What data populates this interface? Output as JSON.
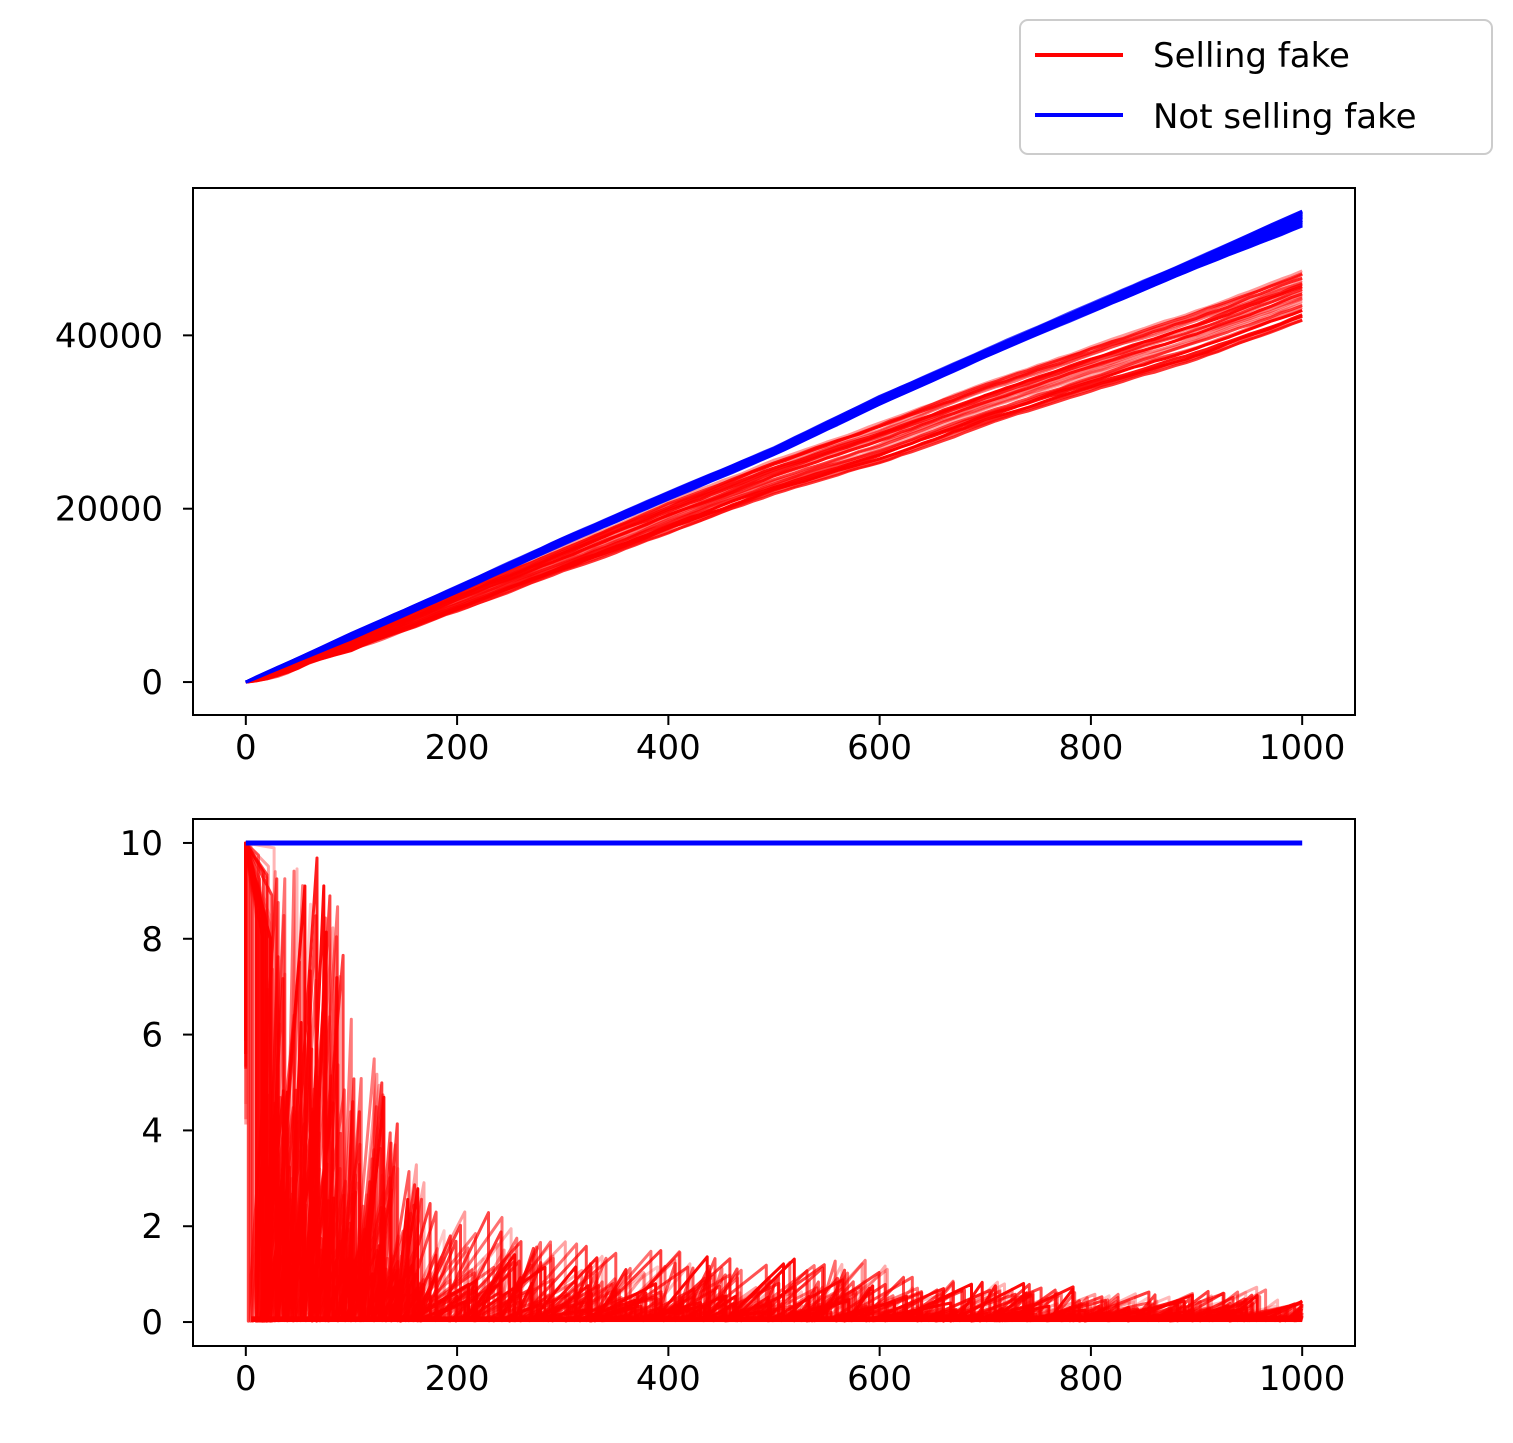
{
  "legend": {
    "entries": [
      {
        "label": "Selling fake",
        "color": "#ff0000"
      },
      {
        "label": "Not selling fake",
        "color": "#0000ff"
      }
    ],
    "placement": "top-right, outside axes"
  },
  "chart_data": [
    {
      "type": "line",
      "panel": "top",
      "title": "",
      "xlabel": "",
      "ylabel": "",
      "xlim": [
        -50,
        1050
      ],
      "ylim": [
        -3800,
        57000
      ],
      "xticks": [
        0,
        200,
        400,
        600,
        800,
        1000
      ],
      "yticks": [
        0,
        20000,
        40000
      ],
      "grid": false,
      "series": [
        {
          "name": "Not selling fake",
          "color": "#0000ff",
          "x": [
            0,
            100,
            200,
            300,
            400,
            500,
            600,
            700,
            800,
            900,
            1000
          ],
          "y_low": [
            0,
            5000,
            10400,
            15900,
            21100,
            26200,
            32000,
            37500,
            42700,
            47800,
            52600
          ],
          "y_high": [
            0,
            5600,
            11000,
            16600,
            21900,
            27000,
            32900,
            38300,
            43600,
            48900,
            54400
          ]
        },
        {
          "name": "Selling fake",
          "color": "#ff0000",
          "x": [
            0,
            100,
            200,
            300,
            400,
            500,
            600,
            700,
            800,
            900,
            1000
          ],
          "y_low": [
            0,
            3700,
            8100,
            12700,
            17200,
            21700,
            25400,
            29800,
            33600,
            37200,
            41600
          ],
          "y_high": [
            0,
            4800,
            10300,
            15400,
            20600,
            25600,
            29800,
            34400,
            38600,
            42700,
            47300
          ]
        }
      ]
    },
    {
      "type": "line",
      "panel": "bottom",
      "title": "",
      "xlabel": "",
      "ylabel": "",
      "xlim": [
        -50,
        1050
      ],
      "ylim": [
        -0.5,
        10.5
      ],
      "xticks": [
        0,
        200,
        400,
        600,
        800,
        1000
      ],
      "yticks": [
        0,
        2,
        4,
        6,
        8,
        10
      ],
      "grid": false,
      "series": [
        {
          "name": "Not selling fake",
          "color": "#0000ff",
          "x": [
            0,
            1000
          ],
          "y": [
            10,
            10
          ]
        },
        {
          "name": "Selling fake",
          "color": "#ff0000",
          "x": [
            0,
            25,
            50,
            75,
            100,
            125,
            150,
            175,
            200,
            250,
            300,
            350,
            400,
            450,
            500,
            550,
            600,
            650,
            700,
            750,
            800,
            850,
            900,
            950,
            1000
          ],
          "y_envelope": [
            10,
            10,
            10,
            8.2,
            6.1,
            4.5,
            2.8,
            2.7,
            2.0,
            1.7,
            1.4,
            1.6,
            1.3,
            1.4,
            1.1,
            1.4,
            0.8,
            0.9,
            0.8,
            0.8,
            0.6,
            0.6,
            0.8,
            0.5,
            0.4
          ],
          "y_floor": 0
        }
      ]
    }
  ]
}
